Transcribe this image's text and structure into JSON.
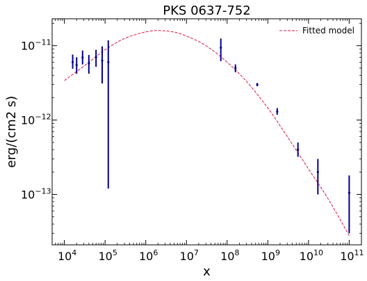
{
  "chart_data": {
    "type": "scatter",
    "title": "PKS 0637-752",
    "xlabel": "x",
    "ylabel": "erg/(cm2 s)",
    "xscale": "log",
    "yscale": "log",
    "xlim": [
      5000.0,
      200000000000.0
    ],
    "ylim": [
      2.1e-14,
      2.3e-11
    ],
    "x_ticks": [
      {
        "base": "10",
        "exp": "4",
        "value": 10000.0
      },
      {
        "base": "10",
        "exp": "5",
        "value": 100000.0
      },
      {
        "base": "10",
        "exp": "6",
        "value": 1000000.0
      },
      {
        "base": "10",
        "exp": "7",
        "value": 10000000.0
      },
      {
        "base": "10",
        "exp": "8",
        "value": 100000000.0
      },
      {
        "base": "10",
        "exp": "9",
        "value": 1000000000.0
      },
      {
        "base": "10",
        "exp": "10",
        "value": 10000000000.0
      },
      {
        "base": "10",
        "exp": "11",
        "value": 100000000000.0
      }
    ],
    "y_ticks": [
      {
        "base": "10",
        "exp": "−11",
        "value": 1e-11
      },
      {
        "base": "10",
        "exp": "−12",
        "value": 1e-12
      },
      {
        "base": "10",
        "exp": "−13",
        "value": 1e-13
      }
    ],
    "legend": {
      "position": "top-right",
      "entries": [
        {
          "label": "Fitted model",
          "style": "dashed",
          "color": "#dc143c"
        }
      ]
    },
    "colors": {
      "data": "#00008b",
      "model": "#dc143c"
    },
    "series": [
      {
        "kind": "errorbar",
        "points": [
          {
            "x": 16000.0,
            "y": 6e-12,
            "ylo": 4.9e-12,
            "yhi": 7.6e-12
          },
          {
            "x": 20000.0,
            "y": 5.5e-12,
            "ylo": 4.2e-12,
            "yhi": 7e-12
          },
          {
            "x": 28000.0,
            "y": 6.9e-12,
            "ylo": 5.6e-12,
            "yhi": 8.6e-12
          },
          {
            "x": 40000.0,
            "y": 5.8e-12,
            "ylo": 4.2e-12,
            "yhi": 7.5e-12
          },
          {
            "x": 60000.0,
            "y": 7e-12,
            "ylo": 5.2e-12,
            "yhi": 8.8e-12
          },
          {
            "x": 85000.0,
            "y": 6.3e-12,
            "ylo": 3.1e-12,
            "yhi": 9.8e-12
          },
          {
            "x": 120000.0,
            "y": 6e-12,
            "ylo": 1.2e-13,
            "yhi": 1.18e-11
          },
          {
            "x": 70000000.0,
            "y": 9.4e-12,
            "ylo": 6.2e-12,
            "yhi": 1.25e-11
          },
          {
            "x": 160000000.0,
            "y": 5e-12,
            "ylo": 4.4e-12,
            "yhi": 5.6e-12
          },
          {
            "x": 550000000.0,
            "y": 3e-12,
            "ylo": 2.85e-12,
            "yhi": 3.15e-12
          },
          {
            "x": 1700000000.0,
            "y": 1.3e-12,
            "ylo": 1.18e-12,
            "yhi": 1.45e-12
          },
          {
            "x": 5500000000.0,
            "y": 4e-13,
            "ylo": 3.2e-13,
            "yhi": 5e-13
          },
          {
            "x": 17000000000.0,
            "y": 2e-13,
            "ylo": 1e-13,
            "yhi": 3e-13
          },
          {
            "x": 100000000000.0,
            "y": 1.05e-13,
            "ylo": 3e-14,
            "yhi": 1.8e-13
          }
        ]
      },
      {
        "name": "Fitted model",
        "kind": "curve",
        "style": "dashed",
        "x": [
          10000.0,
          30000.0,
          100000.0,
          300000.0,
          1000000.0,
          2000000.0,
          5000000.0,
          10000000.0,
          30000000.0,
          100000000.0,
          300000000.0,
          1000000000.0,
          3000000000.0,
          10000000000.0,
          30000000000.0,
          100000000000.0
        ],
        "y": [
          3.4e-12,
          5.3e-12,
          8.8e-12,
          1.25e-11,
          1.53e-11,
          1.6e-11,
          1.52e-11,
          1.35e-11,
          1e-11,
          6e-12,
          3.3e-12,
          1.45e-12,
          6e-13,
          2.2e-13,
          8.8e-14,
          2.8e-14
        ]
      }
    ]
  }
}
